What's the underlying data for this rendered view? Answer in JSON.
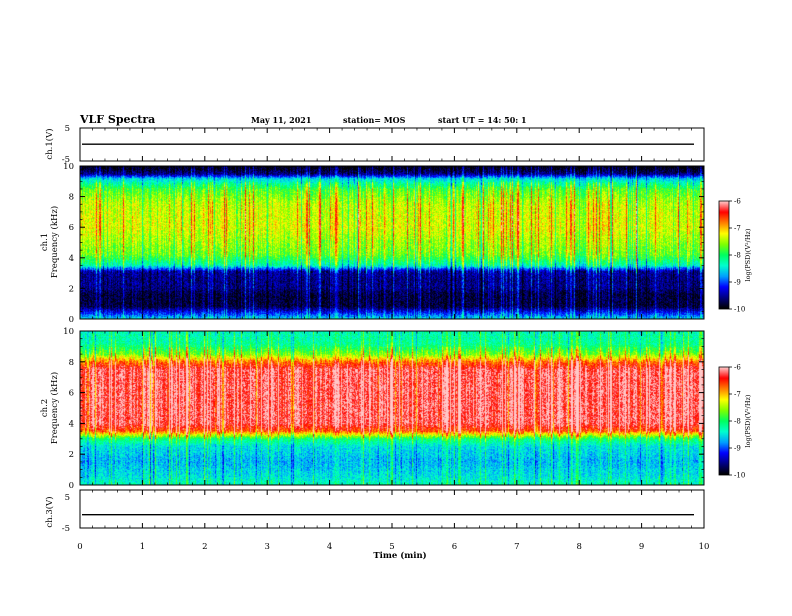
{
  "header": {
    "title": "VLF Spectra",
    "date": "May 11, 2021",
    "station": "station= MOS",
    "start": "start  UT =   14: 50: 1"
  },
  "colors": {
    "colormap": [
      "#000000",
      "#000080",
      "#0000ff",
      "#00a0ff",
      "#00ffd0",
      "#00ff60",
      "#80ff00",
      "#ffff00",
      "#ff8000",
      "#ff0000",
      "#ffc8c8"
    ]
  },
  "chart_data": [
    {
      "type": "line",
      "ylabel": "ch.1(V)",
      "yticks": [
        "5",
        "-5"
      ],
      "ylim": [
        -5,
        5
      ],
      "xlim": [
        0,
        10
      ],
      "series": [
        {
          "values": [
            0.1,
            0.1
          ]
        }
      ]
    },
    {
      "type": "heatmap",
      "ylabel": "ch.1",
      "ylabel2": "Frequency (kHz)",
      "yticks": [
        "0",
        "2",
        "4",
        "6",
        "8",
        "10"
      ],
      "ylim": [
        0,
        10
      ],
      "xlim": [
        0,
        10
      ],
      "colorbar": {
        "ticks": [
          "-6",
          "-7",
          "-8",
          "-9",
          "-10"
        ],
        "label": "log(PSD)(V²/Hz)",
        "range": [
          -10,
          -6
        ]
      },
      "band_profile_log_psd": [
        [
          0,
          -8.6
        ],
        [
          0.4,
          -9.2
        ],
        [
          0.8,
          -9.8
        ],
        [
          1.6,
          -9.8
        ],
        [
          2.0,
          -9.6
        ],
        [
          2.6,
          -9.6
        ],
        [
          3.1,
          -9.5
        ],
        [
          3.5,
          -8.3
        ],
        [
          4.2,
          -7.7
        ],
        [
          6.0,
          -7.3
        ],
        [
          7.5,
          -7.4
        ],
        [
          8.5,
          -7.8
        ],
        [
          9.2,
          -8.6
        ],
        [
          9.5,
          -9.6
        ],
        [
          10,
          -10
        ]
      ]
    },
    {
      "type": "heatmap",
      "ylabel": "ch.2",
      "ylabel2": "Frequency (kHz)",
      "yticks": [
        "0",
        "2",
        "4",
        "6",
        "8",
        "10"
      ],
      "ylim": [
        0,
        10
      ],
      "xlim": [
        0,
        10
      ],
      "colorbar": {
        "ticks": [
          "-6",
          "-7",
          "-8",
          "-9",
          "-10"
        ],
        "label": "log(PSD)(V²/Hz)",
        "range": [
          -10,
          -6
        ]
      },
      "band_profile_log_psd": [
        [
          0,
          -8.3
        ],
        [
          0.5,
          -8.5
        ],
        [
          1.5,
          -8.7
        ],
        [
          2.5,
          -8.5
        ],
        [
          3.0,
          -8.0
        ],
        [
          3.5,
          -6.6
        ],
        [
          4.0,
          -6.2
        ],
        [
          7.5,
          -6.2
        ],
        [
          8.0,
          -6.7
        ],
        [
          8.5,
          -7.6
        ],
        [
          9.2,
          -8.2
        ],
        [
          10,
          -8.3
        ]
      ]
    },
    {
      "type": "line",
      "ylabel": "ch.3(V)",
      "yticks": [
        "5",
        "-5"
      ],
      "ylim": [
        -5,
        5
      ],
      "xlim": [
        0,
        10
      ],
      "series": [
        {
          "values": [
            -1.5,
            -1.5
          ]
        }
      ]
    }
  ],
  "xaxis": {
    "label": "Time  (min)",
    "ticks": [
      "0",
      "1",
      "2",
      "3",
      "4",
      "5",
      "6",
      "7",
      "8",
      "9",
      "10"
    ]
  }
}
